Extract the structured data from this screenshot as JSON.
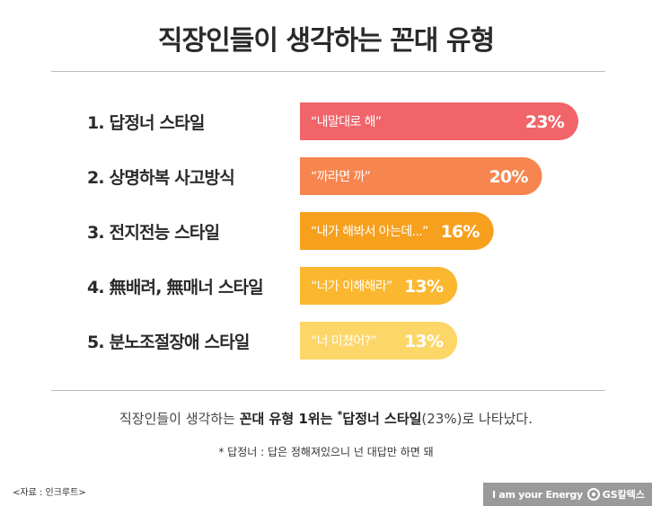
{
  "title": "직장인들이 생각하는 꼰대 유형",
  "chart_data": {
    "type": "bar",
    "orientation": "horizontal",
    "title": "직장인들이 생각하는 꼰대 유형",
    "categories": [
      "1. 답정너 스타일",
      "2. 상명하복 사고방식",
      "3. 전지전능 스타일",
      "4. 無배려, 無매너 스타일",
      "5. 분노조절장애 스타일"
    ],
    "quotes": [
      "“내말대로 해”",
      "“까라면 까”",
      "“내가 해봐서 아는데...”",
      "“너가 이해해라”",
      "“너 미쳤어?”"
    ],
    "values": [
      23,
      20,
      16,
      13,
      13
    ],
    "value_labels": [
      "23%",
      "20%",
      "16%",
      "13%",
      "13%"
    ],
    "colors": [
      "#f0646a",
      "#f7854f",
      "#f6a01e",
      "#fab72f",
      "#fdd668"
    ],
    "grid": false,
    "legend": "none"
  },
  "summary": {
    "prefix": "직장인들이 생각하는 ",
    "bold1": "꼰대 유형 1위는 ",
    "star": "*",
    "bold2": "답정너 스타일",
    "suffix": "(23%)로 나타났다."
  },
  "footnote": "* 답정너 : 답은 정해져있으니 넌 대답만 하면 돼",
  "source": "<자료 : 인크루트>",
  "brand": {
    "slogan": "I am your Energy",
    "logo_text": "GS칼텍스",
    "icon": "gs-caltex-logo-icon"
  }
}
